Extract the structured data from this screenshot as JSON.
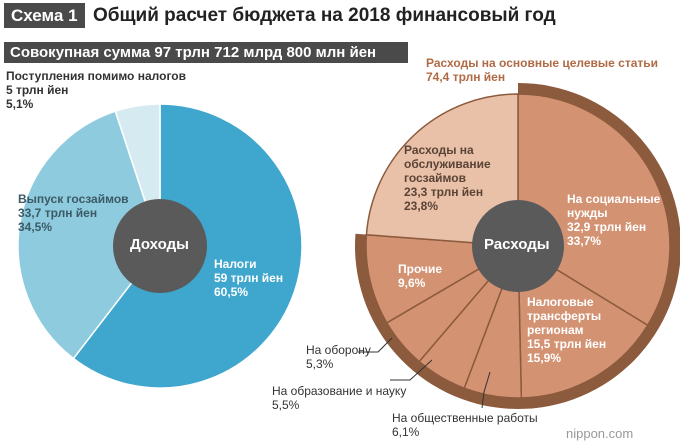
{
  "header": {
    "badge": "Схема 1",
    "title": "Общий расчет бюджета на 2018 финансовый год"
  },
  "total_label": "Совокупная сумма 97 трлн 712 млрд 800 млн йен",
  "watermark": "nippon.com",
  "colors": {
    "revenue_taxes": "#3fa6cd",
    "revenue_bonds": "#8fcbdf",
    "revenue_other": "#d6eaf2",
    "center": "#5a5a5a",
    "exp_ring": "#8c5a3c",
    "exp_main": "#d39373",
    "exp_debt": "#e9c0a8"
  },
  "chart_data": [
    {
      "type": "pie",
      "name": "revenue",
      "center_label": "Доходы",
      "slices": [
        {
          "label": "Налоги",
          "amount": "59 трлн йен",
          "percent_text": "60,5%",
          "value": 60.5
        },
        {
          "label": "Выпуск госзаймов",
          "amount": "33,7 трлн йен",
          "percent_text": "34,5%",
          "value": 34.5
        },
        {
          "label": "Поступления помимо налогов",
          "amount": "5 трлн йен",
          "percent_text": "5,1%",
          "value": 5.1
        }
      ]
    },
    {
      "type": "pie",
      "name": "expenditure",
      "center_label": "Расходы",
      "group_label": "Расходы на основные целевые статьи",
      "group_amount": "74,4 трлн йен",
      "group_value": 76.2,
      "slices": [
        {
          "label": "На социальные нужды",
          "amount": "32,9 трлн йен",
          "percent_text": "33,7%",
          "value": 33.7
        },
        {
          "label": "Налоговые трансферты регионам",
          "amount": "15,5 трлн йен",
          "percent_text": "15,9%",
          "value": 15.9
        },
        {
          "label": "На общественные работы",
          "amount": "",
          "percent_text": "6,1%",
          "value": 6.1
        },
        {
          "label": "На образование и науку",
          "amount": "",
          "percent_text": "5,5%",
          "value": 5.5
        },
        {
          "label": "На оборону",
          "amount": "",
          "percent_text": "5,3%",
          "value": 5.3
        },
        {
          "label": "Прочие",
          "amount": "",
          "percent_text": "9,6%",
          "value": 9.6
        },
        {
          "label": "Расходы на обслуживание госзаймов",
          "amount": "23,3 трлн йен",
          "percent_text": "23,8%",
          "value": 23.8
        }
      ]
    }
  ],
  "labels": {
    "taxes_line1": "Налоги",
    "bonds_line1": "Выпуск госзаймов",
    "other_line1": "Поступления помимо налогов",
    "social_line1": "На социальные",
    "social_line2": "нужды",
    "transfers_line1": "Налоговые",
    "transfers_line2": "трансферты",
    "transfers_line3": "регионам",
    "debt_line1": "Расходы на",
    "debt_line2": "обслуживание",
    "debt_line3": "госзаймов"
  }
}
